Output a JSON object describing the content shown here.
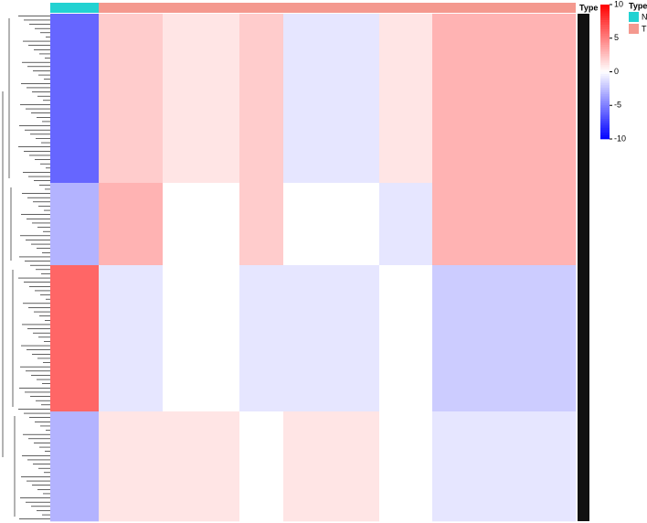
{
  "chart_data": {
    "type": "heatmap",
    "annotation_title": "Type",
    "legend_title": "Type",
    "groups": [
      {
        "name": "N",
        "color": "#22d2d2"
      },
      {
        "name": "T",
        "color": "#f4998f"
      }
    ],
    "col_groups": [
      0,
      1,
      1,
      1,
      1,
      1,
      1
    ],
    "col_sizes": [
      53,
      70,
      84,
      48,
      105,
      58,
      157
    ],
    "row_sizes": [
      185,
      90,
      160,
      120
    ],
    "values": [
      [
        -6,
        2,
        1,
        2,
        -1,
        1,
        3
      ],
      [
        -3,
        3,
        0,
        2,
        0,
        -1,
        3
      ],
      [
        6,
        -1,
        0,
        -1,
        -1,
        0,
        -2
      ],
      [
        -3,
        1,
        1,
        0,
        1,
        0,
        -1
      ]
    ],
    "zlim": [
      -10,
      10
    ],
    "zticks": [
      10,
      5,
      0,
      -5,
      -10
    ],
    "colors": {
      "low": "#0000ff",
      "mid": "#ffffff",
      "high": "#ff0000"
    }
  }
}
